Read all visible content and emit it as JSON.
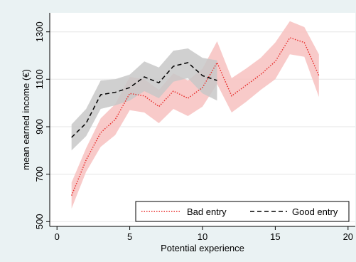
{
  "chart_data": {
    "type": "line",
    "xlabel": "Potential experience",
    "ylabel": "mean earned income (€)",
    "xlim": [
      -0.5,
      20.5
    ],
    "ylim": [
      480,
      1380
    ],
    "x_ticks": [
      0,
      5,
      10,
      15,
      20
    ],
    "y_ticks": [
      500,
      700,
      900,
      1100,
      1300
    ],
    "grid": true,
    "legend_position": "bottom-right",
    "series": [
      {
        "name": "Bad entry",
        "color": "#e8312f",
        "style": "dotted",
        "band_color": "#f7c1c0",
        "x": [
          1,
          2,
          3,
          4,
          5,
          6,
          7,
          8,
          9,
          10,
          11,
          12,
          13,
          14,
          15,
          16,
          17,
          18
        ],
        "values": [
          610,
          760,
          875,
          930,
          1040,
          1030,
          985,
          1050,
          1020,
          1065,
          1170,
          1030,
          1075,
          1120,
          1175,
          1275,
          1255,
          1115
        ],
        "lower": [
          555,
          710,
          815,
          865,
          970,
          960,
          915,
          975,
          945,
          985,
          1080,
          960,
          1005,
          1055,
          1100,
          1205,
          1195,
          1025
        ],
        "upper": [
          665,
          810,
          935,
          995,
          1110,
          1100,
          1055,
          1125,
          1095,
          1145,
          1260,
          1105,
          1145,
          1190,
          1255,
          1345,
          1320,
          1205
        ]
      },
      {
        "name": "Good entry",
        "color": "#000000",
        "style": "dashed",
        "band_color": "#c8c8c8",
        "x": [
          1,
          2,
          3,
          4,
          5,
          6,
          7,
          8,
          9,
          10,
          11
        ],
        "values": [
          855,
          915,
          1035,
          1045,
          1065,
          1110,
          1085,
          1155,
          1170,
          1115,
          1095
        ],
        "lower": [
          800,
          860,
          975,
          990,
          1010,
          1050,
          1020,
          1090,
          1105,
          1040,
          1010
        ],
        "upper": [
          910,
          975,
          1095,
          1100,
          1120,
          1175,
          1150,
          1220,
          1230,
          1190,
          1180
        ]
      }
    ]
  }
}
